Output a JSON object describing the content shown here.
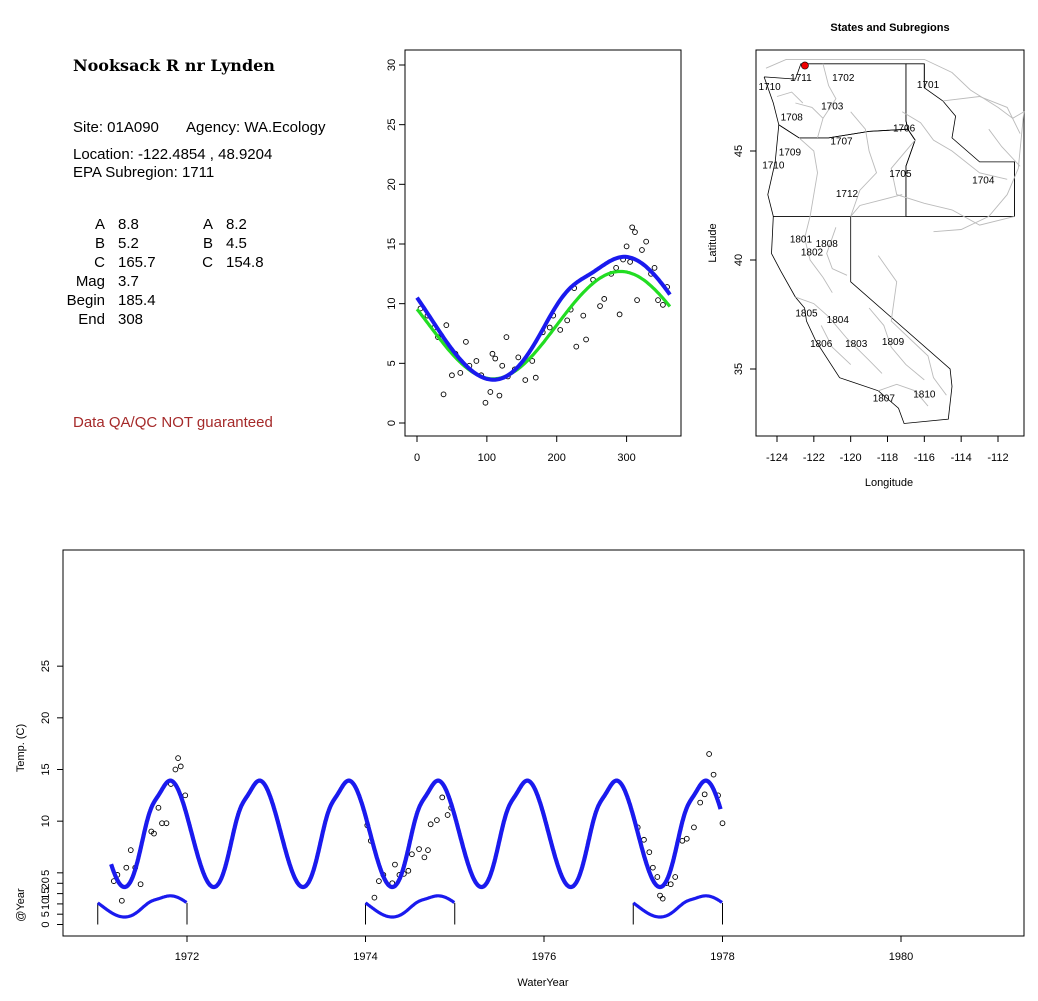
{
  "site": {
    "title": "Nooksack R nr Lynden",
    "site_line": "Site: 01A090",
    "agency_line": "Agency: WA.Ecology",
    "location_line": "Location: -122.4854 , 48.9204",
    "subregion_line": "EPA Subregion: 1711",
    "params_left": [
      {
        "label": "A",
        "value": "8.8"
      },
      {
        "label": "B",
        "value": "5.2"
      },
      {
        "label": "C",
        "value": "165.7"
      },
      {
        "label": "Mag",
        "value": "3.7"
      },
      {
        "label": "Begin",
        "value": "185.4"
      },
      {
        "label": "End",
        "value": "308"
      }
    ],
    "params_right": [
      {
        "label": "A",
        "value": "8.2"
      },
      {
        "label": "B",
        "value": "4.5"
      },
      {
        "label": "C",
        "value": "154.8"
      }
    ],
    "qa_note": "Data QA/QC NOT guaranteed"
  },
  "colors": {
    "blue_fit": "#1a1aee",
    "green_fit": "#22dd22",
    "qa_red": "#a52a2a",
    "site_marker": "#ee0000",
    "boundary_gray": "#bbbbbb"
  },
  "chart_data": [
    {
      "type": "scatter",
      "id": "seasonal-fit",
      "xlim": [
        0,
        365
      ],
      "ylim": [
        0,
        30
      ],
      "xticks": [
        "0",
        "100",
        "200",
        "300"
      ],
      "yticks": [
        "0",
        "5",
        "10",
        "15",
        "20",
        "25",
        "30"
      ],
      "points": [
        [
          5,
          9.6
        ],
        [
          15,
          9.0
        ],
        [
          25,
          8.0
        ],
        [
          30,
          7.2
        ],
        [
          38,
          2.4
        ],
        [
          42,
          8.2
        ],
        [
          50,
          4.0
        ],
        [
          55,
          5.8
        ],
        [
          62,
          4.2
        ],
        [
          70,
          6.8
        ],
        [
          75,
          4.8
        ],
        [
          85,
          5.2
        ],
        [
          92,
          4.0
        ],
        [
          98,
          1.7
        ],
        [
          105,
          2.6
        ],
        [
          108,
          5.8
        ],
        [
          112,
          5.4
        ],
        [
          118,
          2.3
        ],
        [
          122,
          4.8
        ],
        [
          128,
          7.2
        ],
        [
          130,
          3.9
        ],
        [
          140,
          4.5
        ],
        [
          145,
          5.5
        ],
        [
          155,
          3.6
        ],
        [
          165,
          5.2
        ],
        [
          170,
          3.8
        ],
        [
          180,
          7.6
        ],
        [
          190,
          8.0
        ],
        [
          195,
          9.0
        ],
        [
          205,
          7.8
        ],
        [
          215,
          8.6
        ],
        [
          220,
          9.5
        ],
        [
          225,
          11.3
        ],
        [
          228,
          6.4
        ],
        [
          238,
          9.0
        ],
        [
          242,
          7.0
        ],
        [
          252,
          12.0
        ],
        [
          262,
          9.8
        ],
        [
          268,
          10.4
        ],
        [
          278,
          12.5
        ],
        [
          285,
          13.0
        ],
        [
          290,
          9.1
        ],
        [
          295,
          13.7
        ],
        [
          300,
          14.8
        ],
        [
          305,
          13.5
        ],
        [
          308,
          16.4
        ],
        [
          312,
          16.0
        ],
        [
          315,
          10.3
        ],
        [
          322,
          14.5
        ],
        [
          328,
          15.2
        ],
        [
          335,
          12.5
        ],
        [
          340,
          13.0
        ],
        [
          345,
          10.3
        ],
        [
          352,
          9.9
        ],
        [
          358,
          11.4
        ]
      ],
      "curves": [
        {
          "name": "",
          "A": 8.2,
          "B": 4.5,
          "C": 154.8,
          "mag": 0,
          "begin": 0,
          "end": 0,
          "color": "#22dd22"
        },
        {
          "name": "",
          "A": 8.8,
          "B": 5.2,
          "C": 165.7,
          "mag": 3.7,
          "begin": 185.4,
          "end": 308,
          "color": "#1a1aee"
        }
      ]
    },
    {
      "type": "map",
      "id": "states-subregions",
      "title": "States and Subregions",
      "xlabel": "Longitude",
      "ylabel": "Latitude",
      "xlim": [
        -125.3,
        -110.8
      ],
      "ylim": [
        32.2,
        49.4
      ],
      "xticks": [
        "-124",
        "-122",
        "-120",
        "-118",
        "-116",
        "-114",
        "-112"
      ],
      "yticks": [
        "35",
        "40",
        "45"
      ],
      "site": {
        "lon": -122.4854,
        "lat": 48.9204
      },
      "subregions": [
        {
          "label": "1702",
          "lon": -120.4,
          "lat": 48.2
        },
        {
          "label": "1701",
          "lon": -115.8,
          "lat": 47.9
        },
        {
          "label": "1711",
          "lon": -122.7,
          "lat": 48.2
        },
        {
          "label": "1710",
          "lon": -124.4,
          "lat": 47.8
        },
        {
          "label": "1703",
          "lon": -121.0,
          "lat": 46.9
        },
        {
          "label": "1708",
          "lon": -123.2,
          "lat": 46.4
        },
        {
          "label": "1706",
          "lon": -117.1,
          "lat": 45.9
        },
        {
          "label": "1707",
          "lon": -120.5,
          "lat": 45.3
        },
        {
          "label": "1709",
          "lon": -123.3,
          "lat": 44.8
        },
        {
          "label": "1710",
          "lon": -124.2,
          "lat": 44.2
        },
        {
          "label": "1705",
          "lon": -117.3,
          "lat": 43.8
        },
        {
          "label": "1704",
          "lon": -112.8,
          "lat": 43.5
        },
        {
          "label": "1712",
          "lon": -120.2,
          "lat": 42.9
        },
        {
          "label": "1801",
          "lon": -122.7,
          "lat": 40.8
        },
        {
          "label": "1808",
          "lon": -121.3,
          "lat": 40.6
        },
        {
          "label": "1802",
          "lon": -122.1,
          "lat": 40.2
        },
        {
          "label": "1805",
          "lon": -122.4,
          "lat": 37.4
        },
        {
          "label": "1804",
          "lon": -120.7,
          "lat": 37.1
        },
        {
          "label": "1806",
          "lon": -121.6,
          "lat": 36.0
        },
        {
          "label": "1803",
          "lon": -119.7,
          "lat": 36.0
        },
        {
          "label": "1809",
          "lon": -117.7,
          "lat": 36.1
        },
        {
          "label": "1807",
          "lon": -118.2,
          "lat": 33.5
        },
        {
          "label": "1810",
          "lon": -116.0,
          "lat": 33.7
        }
      ]
    },
    {
      "type": "scatter",
      "id": "time-series",
      "xlabel": "WaterYear",
      "ylabel": "Temp. (C)",
      "xlim": [
        1970.75,
        1981.35
      ],
      "ylim": [
        0,
        30
      ],
      "xticks": [
        "1972",
        "1974",
        "1976",
        "1978",
        "1980"
      ],
      "yticks": [
        "5",
        "10",
        "15",
        "20",
        "25"
      ],
      "fit_range": [
        1971.15,
        1977.98
      ],
      "points": [
        [
          1971.18,
          4.2
        ],
        [
          1971.22,
          4.8
        ],
        [
          1971.27,
          2.3
        ],
        [
          1971.32,
          5.5
        ],
        [
          1971.37,
          7.2
        ],
        [
          1971.42,
          5.5
        ],
        [
          1971.48,
          3.9
        ],
        [
          1971.6,
          9.0
        ],
        [
          1971.63,
          8.8
        ],
        [
          1971.68,
          11.3
        ],
        [
          1971.72,
          9.8
        ],
        [
          1971.77,
          9.8
        ],
        [
          1971.82,
          13.6
        ],
        [
          1971.87,
          15.0
        ],
        [
          1971.9,
          16.1
        ],
        [
          1971.93,
          15.3
        ],
        [
          1971.98,
          12.5
        ],
        [
          1974.02,
          9.6
        ],
        [
          1974.06,
          8.1
        ],
        [
          1974.1,
          2.6
        ],
        [
          1974.15,
          4.2
        ],
        [
          1974.2,
          4.8
        ],
        [
          1974.3,
          4.0
        ],
        [
          1974.33,
          5.8
        ],
        [
          1974.38,
          4.8
        ],
        [
          1974.43,
          4.9
        ],
        [
          1974.48,
          5.2
        ],
        [
          1974.52,
          6.8
        ],
        [
          1974.6,
          7.3
        ],
        [
          1974.66,
          6.5
        ],
        [
          1974.7,
          7.2
        ],
        [
          1974.73,
          9.7
        ],
        [
          1974.8,
          10.1
        ],
        [
          1974.86,
          12.3
        ],
        [
          1974.92,
          10.6
        ],
        [
          1974.96,
          11.3
        ],
        [
          1977.05,
          9.4
        ],
        [
          1977.12,
          8.2
        ],
        [
          1977.18,
          7.0
        ],
        [
          1977.22,
          5.5
        ],
        [
          1977.27,
          4.6
        ],
        [
          1977.3,
          2.8
        ],
        [
          1977.33,
          2.5
        ],
        [
          1977.37,
          4.0
        ],
        [
          1977.42,
          3.9
        ],
        [
          1977.47,
          4.6
        ],
        [
          1977.55,
          8.1
        ],
        [
          1977.6,
          8.3
        ],
        [
          1977.68,
          9.4
        ],
        [
          1977.75,
          11.8
        ],
        [
          1977.8,
          12.6
        ],
        [
          1977.85,
          16.5
        ],
        [
          1977.9,
          14.5
        ],
        [
          1977.95,
          12.5
        ],
        [
          1978.0,
          9.8
        ]
      ]
    },
    {
      "type": "line",
      "id": "at-year-strip",
      "ylabel": "@Year",
      "ylim": [
        0,
        27
      ],
      "yticks": [
        "0",
        "5",
        "10",
        "15",
        "20"
      ],
      "years": [
        1971,
        1974,
        1977
      ]
    }
  ]
}
